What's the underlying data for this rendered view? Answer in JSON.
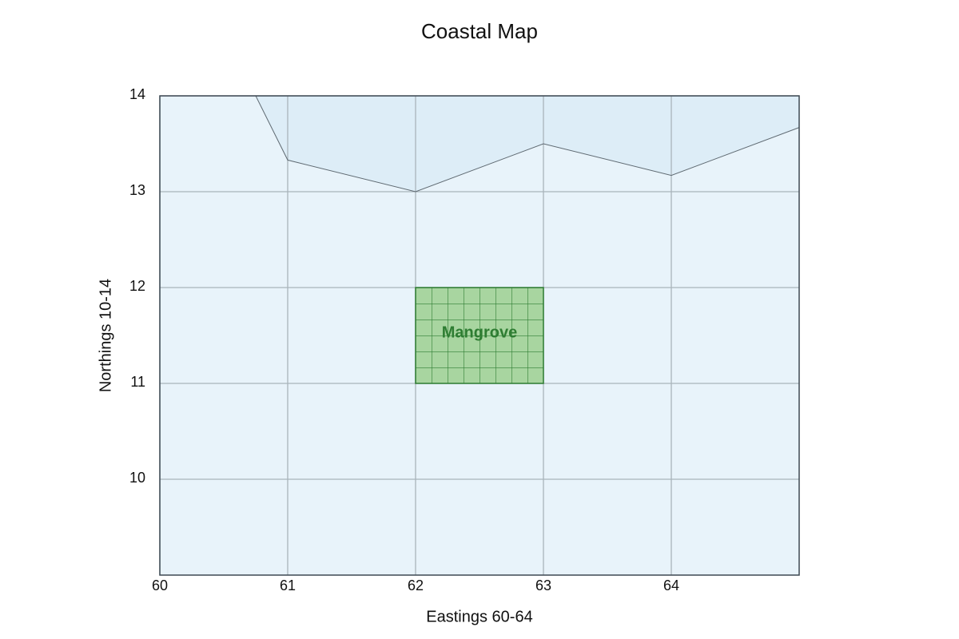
{
  "chart_data": {
    "type": "map",
    "title": "Coastal Map",
    "x_label": "Eastings 60-64",
    "y_label": "Northings 10-14",
    "xlim": [
      60,
      65
    ],
    "ylim": [
      9,
      14
    ],
    "xticks": [
      60,
      61,
      62,
      63,
      64
    ],
    "yticks": [
      10,
      11,
      12,
      13,
      14
    ],
    "grid": true,
    "land_color": "#e8f3fa",
    "sea": {
      "color": "#ddedf7",
      "x": [
        60.75,
        61,
        62,
        63,
        64,
        65
      ],
      "y": [
        14,
        13.33,
        13,
        13.5,
        13.17,
        13.67
      ]
    },
    "zones": [
      {
        "label": "Mangrove",
        "color": "#a8d5a0",
        "edge_color": "#2e7d32",
        "x": [
          62,
          63
        ],
        "y": [
          11,
          12
        ]
      }
    ]
  }
}
